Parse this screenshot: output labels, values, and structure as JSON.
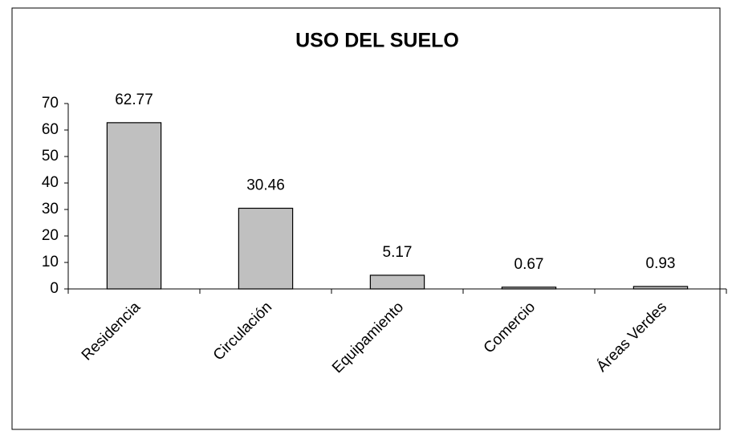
{
  "chart_data": {
    "type": "bar",
    "title": "USO DEL SUELO",
    "categories": [
      "Residencia",
      "Circulación",
      "Equipamiento",
      "Comercio",
      "Áreas Verdes"
    ],
    "values": [
      62.77,
      30.46,
      5.17,
      0.67,
      0.93
    ],
    "color": "#c0c0c0",
    "ylim": [
      0,
      70
    ],
    "yticks": [
      0,
      10,
      20,
      30,
      40,
      50,
      60,
      70
    ],
    "grid": false
  }
}
